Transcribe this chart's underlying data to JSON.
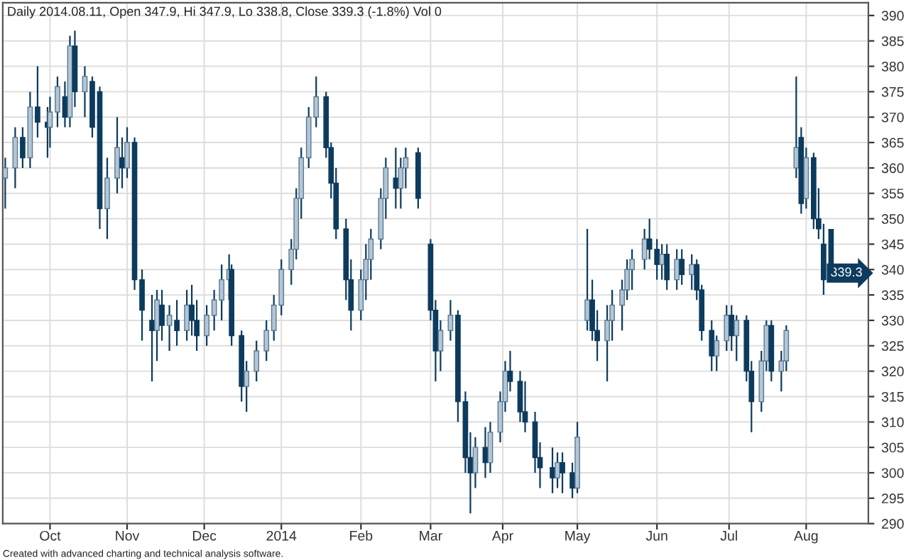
{
  "chart_data": {
    "type": "candlestick",
    "title": "Daily 2014.08.11, Open 347.9, Hi 347.9, Lo 338.8, Close 339.3 (-1.8%) Vol 0",
    "x": [
      "2013-09-13",
      "2013-09-17",
      "2013-09-20",
      "2013-09-23",
      "2013-09-26",
      "2013-09-30",
      "2013-10-01",
      "2013-10-04",
      "2013-10-07",
      "2013-10-09",
      "2013-10-11",
      "2013-10-15",
      "2013-10-18",
      "2013-10-21",
      "2013-10-24",
      "2013-10-28",
      "2013-10-30",
      "2013-11-01",
      "2013-11-04",
      "2013-11-07",
      "2013-11-11",
      "2013-11-13",
      "2013-11-15",
      "2013-11-18",
      "2013-11-21",
      "2013-11-25",
      "2013-11-27",
      "2013-11-29",
      "2013-12-03",
      "2013-12-06",
      "2013-12-09",
      "2013-12-12",
      "2013-12-13",
      "2013-12-17",
      "2013-12-19",
      "2013-12-23",
      "2013-12-27",
      "2013-12-30",
      "2014-01-02",
      "2014-01-06",
      "2014-01-08",
      "2014-01-10",
      "2014-01-13",
      "2014-01-16",
      "2014-01-20",
      "2014-01-22",
      "2014-01-24",
      "2014-01-28",
      "2014-01-30",
      "2014-02-03",
      "2014-02-05",
      "2014-02-07",
      "2014-02-11",
      "2014-02-13",
      "2014-02-17",
      "2014-02-19",
      "2014-02-21",
      "2014-02-26",
      "2014-03-03",
      "2014-03-05",
      "2014-03-07",
      "2014-03-11",
      "2014-03-14",
      "2014-03-17",
      "2014-03-19",
      "2014-03-21",
      "2014-03-25",
      "2014-03-27",
      "2014-03-31",
      "2014-04-02",
      "2014-04-04",
      "2014-04-08",
      "2014-04-10",
      "2014-04-14",
      "2014-04-16",
      "2014-04-21",
      "2014-04-23",
      "2014-04-25",
      "2014-04-29",
      "2014-05-01",
      "2014-05-05",
      "2014-05-07",
      "2014-05-09",
      "2014-05-13",
      "2014-05-15",
      "2014-05-19",
      "2014-05-21",
      "2014-05-23",
      "2014-05-28",
      "2014-05-30",
      "2014-06-02",
      "2014-06-04",
      "2014-06-06",
      "2014-06-10",
      "2014-06-12",
      "2014-06-16",
      "2014-06-18",
      "2014-06-20",
      "2014-06-24",
      "2014-06-26",
      "2014-06-30",
      "2014-07-02",
      "2014-07-04",
      "2014-07-08",
      "2014-07-10",
      "2014-07-14",
      "2014-07-16",
      "2014-07-18",
      "2014-07-22",
      "2014-07-24",
      "2014-07-28",
      "2014-07-30",
      "2014-08-01",
      "2014-08-04",
      "2014-08-06",
      "2014-08-08",
      "2014-08-11"
    ],
    "ohlc": [
      [
        358,
        362,
        352,
        360
      ],
      [
        360,
        368,
        356,
        366
      ],
      [
        366,
        368,
        360,
        362
      ],
      [
        362,
        375,
        360,
        372
      ],
      [
        372,
        380,
        366,
        369
      ],
      [
        369,
        372,
        362,
        368
      ],
      [
        368,
        374,
        364,
        371
      ],
      [
        371,
        378,
        368,
        376
      ],
      [
        374,
        377,
        368,
        370
      ],
      [
        370,
        386,
        368,
        384
      ],
      [
        384,
        387,
        372,
        375
      ],
      [
        375,
        380,
        370,
        378
      ],
      [
        377,
        378,
        366,
        368
      ],
      [
        375,
        376,
        348,
        352
      ],
      [
        352,
        362,
        346,
        358
      ],
      [
        358,
        370,
        355,
        364
      ],
      [
        362,
        366,
        356,
        360
      ],
      [
        360,
        368,
        358,
        365
      ],
      [
        365,
        366,
        336,
        338
      ],
      [
        338,
        340,
        326,
        332
      ],
      [
        330,
        335,
        318,
        328
      ],
      [
        328,
        336,
        322,
        334
      ],
      [
        333,
        336,
        326,
        329
      ],
      [
        329,
        333,
        324,
        331
      ],
      [
        330,
        334,
        325,
        328
      ],
      [
        328,
        336,
        326,
        333
      ],
      [
        333,
        337,
        327,
        330
      ],
      [
        330,
        334,
        324,
        327
      ],
      [
        327,
        333,
        325,
        331
      ],
      [
        331,
        336,
        328,
        334
      ],
      [
        334,
        341,
        330,
        338
      ],
      [
        338,
        343,
        334,
        340
      ],
      [
        340,
        341,
        325,
        327
      ],
      [
        327,
        328,
        314,
        317
      ],
      [
        317,
        322,
        312,
        320
      ],
      [
        320,
        326,
        318,
        324
      ],
      [
        324,
        330,
        322,
        328
      ],
      [
        328,
        335,
        326,
        333
      ],
      [
        333,
        342,
        331,
        340
      ],
      [
        340,
        346,
        337,
        344
      ],
      [
        344,
        356,
        342,
        354
      ],
      [
        354,
        364,
        350,
        362
      ],
      [
        362,
        372,
        360,
        370
      ],
      [
        370,
        378,
        368,
        374
      ],
      [
        374,
        375,
        362,
        364
      ],
      [
        364,
        365,
        354,
        357
      ],
      [
        357,
        360,
        346,
        348
      ],
      [
        348,
        350,
        334,
        338
      ],
      [
        338,
        342,
        328,
        332
      ],
      [
        332,
        340,
        330,
        338
      ],
      [
        338,
        345,
        334,
        342
      ],
      [
        342,
        348,
        338,
        346
      ],
      [
        346,
        356,
        344,
        354
      ],
      [
        354,
        362,
        350,
        360
      ],
      [
        358,
        364,
        352,
        356
      ],
      [
        356,
        362,
        352,
        360
      ],
      [
        360,
        364,
        356,
        362
      ],
      [
        363,
        364,
        352,
        354
      ],
      [
        345,
        346,
        330,
        332
      ],
      [
        332,
        334,
        318,
        324
      ],
      [
        324,
        330,
        320,
        328
      ],
      [
        328,
        334,
        326,
        331
      ],
      [
        331,
        332,
        310,
        314
      ],
      [
        314,
        316,
        300,
        303
      ],
      [
        303,
        308,
        292,
        300
      ],
      [
        300,
        307,
        297,
        305
      ],
      [
        305,
        309,
        299,
        302
      ],
      [
        302,
        310,
        300,
        308
      ],
      [
        308,
        316,
        306,
        314
      ],
      [
        314,
        322,
        312,
        320
      ],
      [
        320,
        324,
        316,
        318
      ],
      [
        318,
        320,
        310,
        312
      ],
      [
        312,
        318,
        308,
        310
      ],
      [
        310,
        312,
        300,
        303
      ],
      [
        303,
        306,
        297,
        301
      ],
      [
        301,
        305,
        296,
        299
      ],
      [
        299,
        304,
        297,
        302
      ],
      [
        302,
        304,
        296,
        300
      ],
      [
        300,
        302,
        295,
        297
      ],
      [
        297,
        310,
        296,
        307
      ],
      [
        330,
        348,
        328,
        334
      ],
      [
        334,
        338,
        326,
        328
      ],
      [
        328,
        332,
        322,
        326
      ],
      [
        326,
        333,
        318,
        330
      ],
      [
        330,
        336,
        326,
        333
      ],
      [
        333,
        338,
        328,
        336
      ],
      [
        336,
        342,
        334,
        340
      ],
      [
        340,
        344,
        336,
        342
      ],
      [
        342,
        348,
        340,
        346
      ],
      [
        346,
        350,
        342,
        344
      ],
      [
        344,
        346,
        338,
        341
      ],
      [
        341,
        345,
        338,
        343
      ],
      [
        343,
        345,
        336,
        338
      ],
      [
        338,
        344,
        336,
        342
      ],
      [
        342,
        344,
        337,
        339
      ],
      [
        339,
        343,
        336,
        341
      ],
      [
        341,
        342,
        334,
        336
      ],
      [
        336,
        337,
        326,
        328
      ],
      [
        328,
        330,
        320,
        323
      ],
      [
        323,
        327,
        320,
        326
      ],
      [
        326,
        333,
        324,
        331
      ],
      [
        331,
        333,
        324,
        327
      ],
      [
        327,
        331,
        322,
        330
      ],
      [
        330,
        331,
        318,
        320
      ],
      [
        320,
        322,
        308,
        314
      ],
      [
        314,
        324,
        312,
        322
      ],
      [
        322,
        330,
        320,
        329
      ],
      [
        329,
        330,
        318,
        320
      ],
      [
        320,
        324,
        316,
        322
      ],
      [
        322,
        329,
        320,
        328
      ],
      [
        360,
        378,
        358,
        364
      ],
      [
        366,
        368,
        351,
        353
      ],
      [
        354,
        364,
        352,
        362
      ],
      [
        362,
        363,
        348,
        350
      ],
      [
        350,
        356,
        346,
        348
      ],
      [
        345,
        349,
        335,
        338
      ],
      [
        347.9,
        347.9,
        338.8,
        339.3
      ]
    ],
    "xlim": [
      "2013-09-12",
      "2014-08-26"
    ],
    "xticks": [
      {
        "value": "2013-10-01",
        "label": "Oct"
      },
      {
        "value": "2013-11-01",
        "label": "Nov"
      },
      {
        "value": "2013-12-02",
        "label": "Dec"
      },
      {
        "value": "2014-01-02",
        "label": "2014"
      },
      {
        "value": "2014-02-03",
        "label": "Feb"
      },
      {
        "value": "2014-03-03",
        "label": "Mar"
      },
      {
        "value": "2014-04-01",
        "label": "Apr"
      },
      {
        "value": "2014-05-01",
        "label": "May"
      },
      {
        "value": "2014-06-02",
        "label": "Jun"
      },
      {
        "value": "2014-07-01",
        "label": "Jul"
      },
      {
        "value": "2014-08-01",
        "label": "Aug"
      }
    ],
    "ylim": [
      290,
      392.5
    ],
    "yticks": [
      290,
      295,
      300,
      305,
      310,
      315,
      320,
      325,
      330,
      335,
      340,
      345,
      350,
      355,
      360,
      365,
      370,
      375,
      380,
      385,
      390
    ],
    "grid": true,
    "annotations": [
      "339.3",
      "Created with advanced charting and technical analysis software."
    ]
  }
}
